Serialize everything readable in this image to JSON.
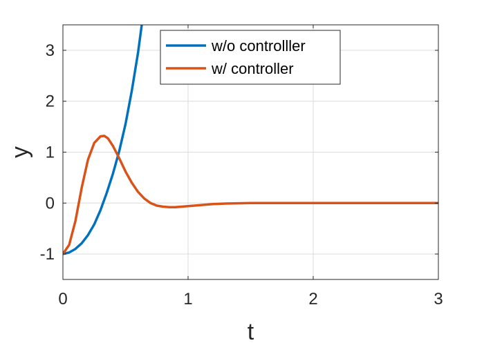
{
  "chart_data": {
    "type": "line",
    "xlabel": "t",
    "ylabel": "y",
    "xlim": [
      0,
      3
    ],
    "ylim": [
      -1.5,
      3.5
    ],
    "xticks": [
      0,
      1,
      2,
      3
    ],
    "xtick_labels": [
      "0",
      "1",
      "2",
      "3"
    ],
    "yticks": [
      -1,
      0,
      1,
      2,
      3
    ],
    "ytick_labels": [
      "-1",
      "0",
      "1",
      "2",
      "3"
    ],
    "grid": true,
    "legend_position": "top-center",
    "series": [
      {
        "name": "w/o controlller",
        "color": "#0072BD",
        "x": [
          0,
          0.05,
          0.1,
          0.15,
          0.2,
          0.25,
          0.3,
          0.35,
          0.4,
          0.45,
          0.5,
          0.55,
          0.6,
          0.63
        ],
        "y": [
          -1.0,
          -0.97,
          -0.9,
          -0.79,
          -0.63,
          -0.42,
          -0.14,
          0.2,
          0.58,
          1.02,
          1.55,
          2.2,
          2.95,
          3.5
        ]
      },
      {
        "name": "w/ controller",
        "color": "#D95319",
        "x": [
          0,
          0.05,
          0.1,
          0.15,
          0.2,
          0.25,
          0.3,
          0.33,
          0.36,
          0.4,
          0.45,
          0.5,
          0.55,
          0.6,
          0.65,
          0.7,
          0.75,
          0.8,
          0.85,
          0.9,
          0.95,
          1.0,
          1.1,
          1.2,
          1.3,
          1.5,
          1.75,
          2.0,
          2.5,
          3.0
        ],
        "y": [
          -1.0,
          -0.82,
          -0.35,
          0.3,
          0.85,
          1.18,
          1.31,
          1.32,
          1.27,
          1.12,
          0.88,
          0.62,
          0.4,
          0.22,
          0.09,
          0.0,
          -0.05,
          -0.07,
          -0.08,
          -0.08,
          -0.07,
          -0.06,
          -0.04,
          -0.02,
          -0.01,
          0.0,
          0.0,
          0.0,
          0.0,
          0.0
        ]
      }
    ]
  }
}
